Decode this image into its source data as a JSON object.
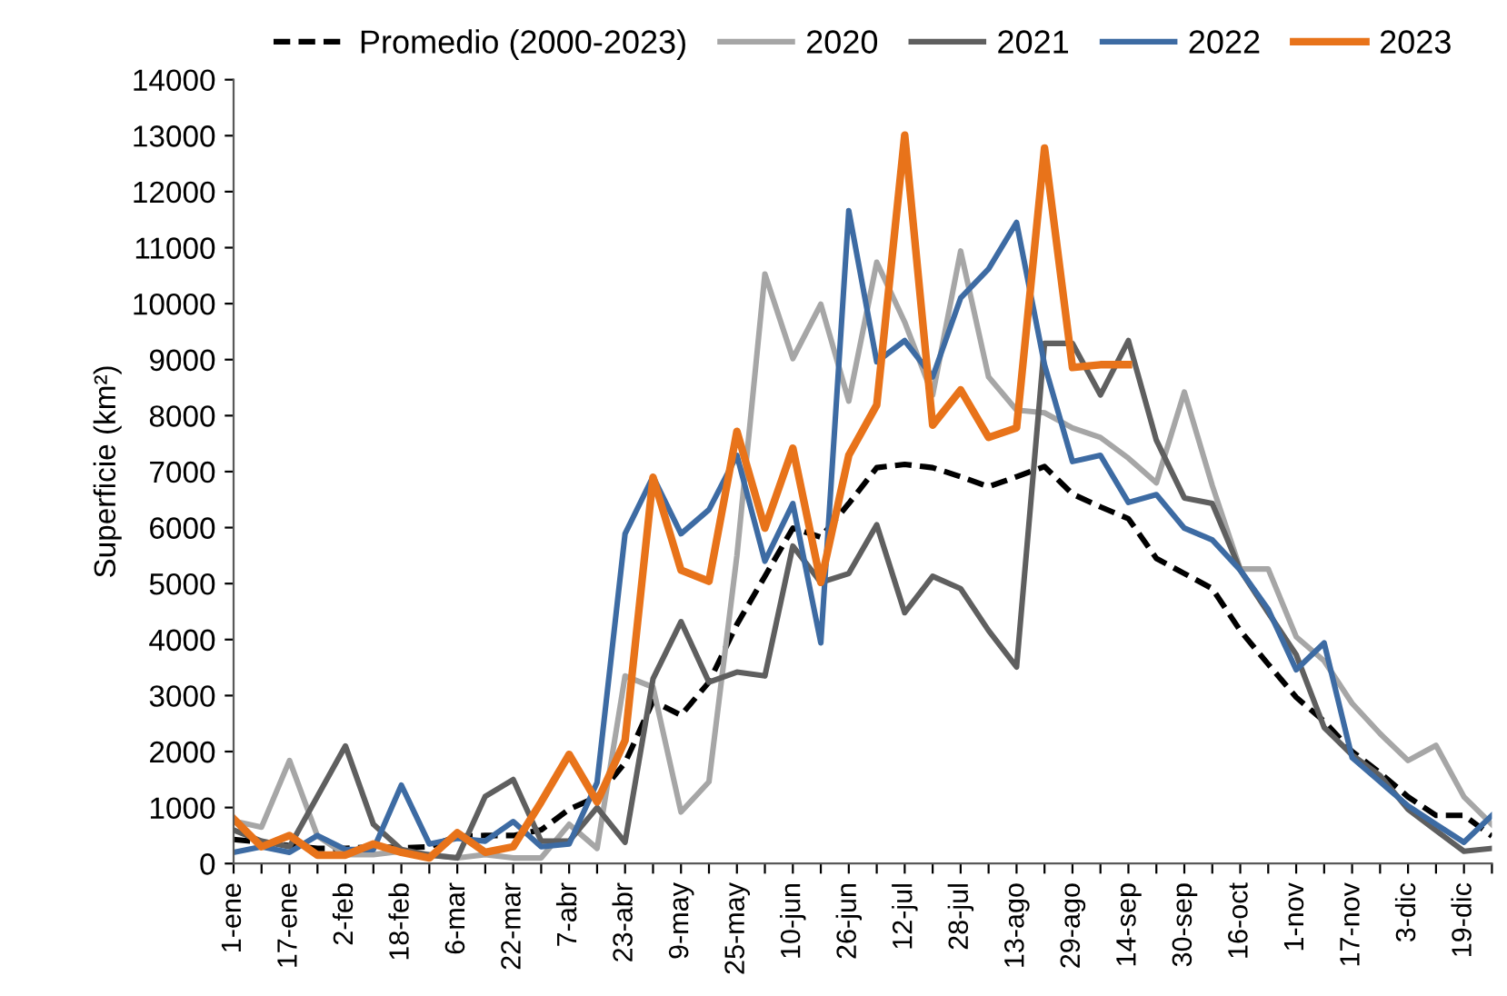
{
  "chart_data": {
    "type": "line",
    "ylabel": "Superficie (km²)",
    "categories": [
      "1-ene",
      null,
      "17-ene",
      null,
      "2-feb",
      null,
      "18-feb",
      null,
      "6-mar",
      null,
      "22-mar",
      null,
      "7-abr",
      null,
      "23-abr",
      null,
      "9-may",
      null,
      "25-may",
      null,
      "10-jun",
      null,
      "26-jun",
      null,
      "12-jul",
      null,
      "28-jul",
      null,
      "13-ago",
      null,
      "29-ago",
      null,
      "14-sep",
      null,
      "30-sep",
      null,
      "16-oct",
      null,
      "1-nov",
      null,
      "17-nov",
      null,
      "3-dic",
      null,
      "19-dic",
      null
    ],
    "ylim": [
      0,
      14000
    ],
    "yticks": [
      0,
      1000,
      2000,
      3000,
      4000,
      5000,
      6000,
      7000,
      8000,
      9000,
      10000,
      11000,
      12000,
      13000,
      14000
    ],
    "grid": false,
    "legend": "top",
    "marker": "none",
    "series": [
      {
        "name": "Promedio (2000-2023)",
        "color": "#000000",
        "line_style": "dashed",
        "values": [
          430,
          380,
          320,
          270,
          270,
          300,
          280,
          300,
          490,
          500,
          500,
          600,
          970,
          1190,
          1800,
          2900,
          2650,
          3240,
          4270,
          5130,
          5990,
          5830,
          6430,
          7070,
          7130,
          7070,
          6910,
          6730,
          6910,
          7090,
          6600,
          6370,
          6160,
          5450,
          5180,
          4910,
          4160,
          3560,
          2970,
          2540,
          2000,
          1620,
          1190,
          860,
          860,
          490
        ]
      },
      {
        "name": "2020",
        "color": "#a6a6a6",
        "line_style": "solid",
        "values": [
          760,
          650,
          1840,
          490,
          160,
          160,
          220,
          160,
          100,
          160,
          100,
          100,
          700,
          270,
          3350,
          3150,
          920,
          1460,
          5500,
          10530,
          9020,
          9990,
          8260,
          10740,
          9670,
          8370,
          10940,
          8690,
          8100,
          8050,
          7780,
          7610,
          7240,
          6800,
          8420,
          6750,
          5260,
          5260,
          4050,
          3620,
          2860,
          2320,
          1840,
          2110,
          1190,
          700
        ]
      },
      {
        "name": "2021",
        "color": "#5f5f5f",
        "line_style": "solid",
        "values": [
          600,
          400,
          300,
          1200,
          2100,
          700,
          250,
          150,
          100,
          1200,
          1500,
          400,
          400,
          1000,
          380,
          3300,
          4320,
          3240,
          3420,
          3350,
          5670,
          5020,
          5180,
          6050,
          4480,
          5130,
          4910,
          4160,
          3510,
          9290,
          9290,
          8370,
          9340,
          7560,
          6530,
          6430,
          5240,
          4480,
          3730,
          2430,
          1940,
          1570,
          970,
          590,
          220,
          270
        ]
      },
      {
        "name": "2022",
        "color": "#3d6ba3",
        "line_style": "solid",
        "values": [
          200,
          300,
          200,
          500,
          250,
          250,
          1400,
          350,
          450,
          400,
          750,
          300,
          350,
          1450,
          5890,
          6910,
          5890,
          6320,
          7290,
          5400,
          6430,
          3940,
          11660,
          8960,
          9340,
          8690,
          10100,
          10620,
          11450,
          8910,
          7180,
          7290,
          6450,
          6590,
          5990,
          5780,
          5240,
          4540,
          3460,
          3940,
          1890,
          1460,
          1030,
          700,
          380,
          860
        ]
      },
      {
        "name": "2023",
        "color": "#e8731a",
        "line_style": "solid",
        "values": [
          800,
          300,
          500,
          150,
          150,
          350,
          200,
          100,
          550,
          200,
          300,
          1100,
          1950,
          1100,
          2200,
          6900,
          5240,
          5040,
          7720,
          5990,
          7420,
          5020,
          7290,
          8190,
          13010,
          7830,
          8460,
          7610,
          7780,
          12780,
          8860,
          8910,
          8910,
          null,
          null,
          null,
          null,
          null,
          null,
          null,
          null,
          null,
          null,
          null,
          null,
          null
        ]
      }
    ]
  }
}
